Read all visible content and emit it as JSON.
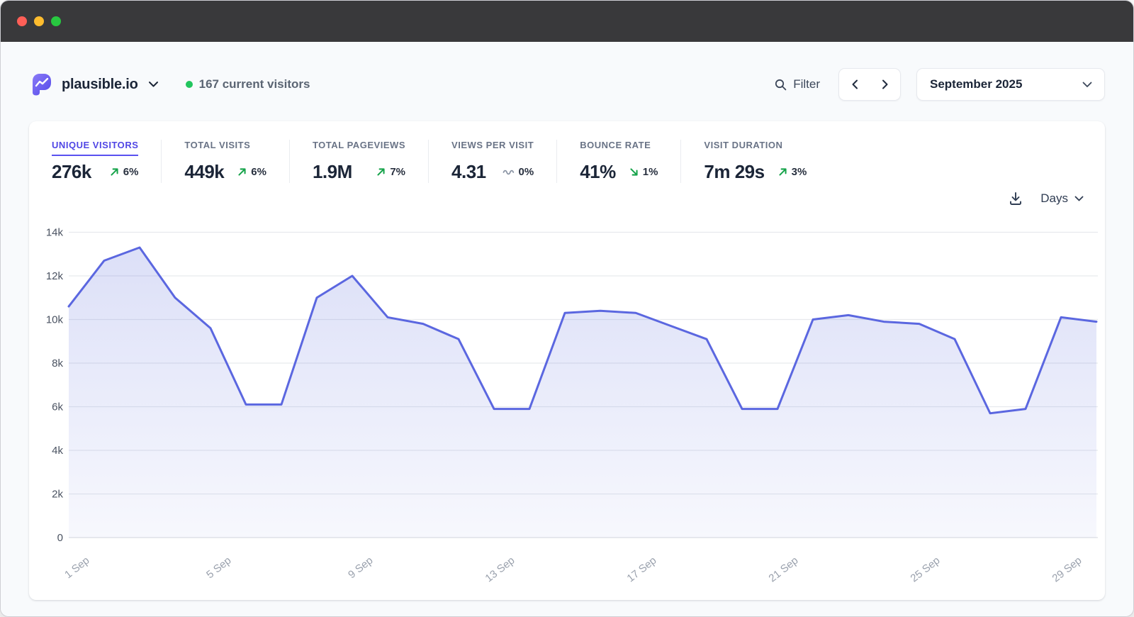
{
  "header": {
    "site_name": "plausible.io",
    "current_visitors": "167 current visitors",
    "filter_label": "Filter",
    "period_label": "September 2025"
  },
  "stats": [
    {
      "label": "UNIQUE VISITORS",
      "value": "276k",
      "change": "6%",
      "direction": "up",
      "active": true
    },
    {
      "label": "TOTAL VISITS",
      "value": "449k",
      "change": "6%",
      "direction": "up",
      "active": false
    },
    {
      "label": "TOTAL PAGEVIEWS",
      "value": "1.9M",
      "change": "7%",
      "direction": "up",
      "active": false
    },
    {
      "label": "VIEWS PER VISIT",
      "value": "4.31",
      "change": "0%",
      "direction": "flat",
      "active": false
    },
    {
      "label": "BOUNCE RATE",
      "value": "41%",
      "change": "1%",
      "direction": "down",
      "active": false
    },
    {
      "label": "VISIT DURATION",
      "value": "7m 29s",
      "change": "3%",
      "direction": "up",
      "active": false
    }
  ],
  "chart_controls": {
    "interval_label": "Days"
  },
  "colors": {
    "accent_indigo": "#5046e5",
    "line": "#5b67e0",
    "positive_green": "#16a34a",
    "live_dot_green": "#22c55e",
    "titlebar": "#39393b",
    "page_bg": "#f8fafc"
  },
  "chart_data": {
    "type": "area",
    "title": "Unique visitors per day, September 2025",
    "x": [
      "1 Sep",
      "2 Sep",
      "3 Sep",
      "4 Sep",
      "5 Sep",
      "6 Sep",
      "7 Sep",
      "8 Sep",
      "9 Sep",
      "10 Sep",
      "11 Sep",
      "12 Sep",
      "13 Sep",
      "14 Sep",
      "15 Sep",
      "16 Sep",
      "17 Sep",
      "18 Sep",
      "19 Sep",
      "20 Sep",
      "21 Sep",
      "22 Sep",
      "23 Sep",
      "24 Sep",
      "25 Sep",
      "26 Sep",
      "27 Sep",
      "28 Sep",
      "29 Sep",
      "30 Sep"
    ],
    "values": [
      10600,
      12700,
      13300,
      11000,
      9600,
      6100,
      6100,
      11000,
      12000,
      10100,
      9800,
      9100,
      5900,
      5900,
      10300,
      10400,
      10300,
      9700,
      9100,
      5900,
      5900,
      10000,
      10200,
      9900,
      9800,
      9100,
      5700,
      5900,
      10100,
      9900
    ],
    "x_tick_labels": [
      "1 Sep",
      "5 Sep",
      "9 Sep",
      "13 Sep",
      "17 Sep",
      "21 Sep",
      "25 Sep",
      "29 Sep"
    ],
    "y_ticks": [
      "0",
      "2k",
      "4k",
      "6k",
      "8k",
      "10k",
      "12k",
      "14k"
    ],
    "ylim": [
      0,
      14000
    ],
    "grid": true,
    "legend": false
  }
}
